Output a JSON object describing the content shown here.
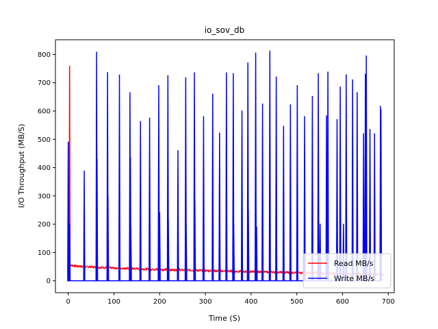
{
  "chart_data": {
    "type": "line",
    "title": "io_sov_db",
    "xlabel": "Time (S)",
    "ylabel": "I/O Throughput (MB/S)",
    "xlim": [
      -28,
      713
    ],
    "ylim": [
      -42,
      852
    ],
    "xticks": [
      0,
      100,
      200,
      300,
      400,
      500,
      600,
      700
    ],
    "yticks": [
      0,
      100,
      200,
      300,
      400,
      500,
      600,
      700,
      800
    ],
    "grid": false,
    "legend_position": "lower-right",
    "read_baseline": {
      "points": [
        [
          3,
          55
        ],
        [
          20,
          52
        ],
        [
          60,
          48
        ],
        [
          100,
          45
        ],
        [
          200,
          40
        ],
        [
          300,
          36
        ],
        [
          400,
          32
        ],
        [
          500,
          29
        ],
        [
          600,
          25
        ],
        [
          700,
          22
        ]
      ]
    },
    "read_spikes": [
      [
        3,
        760
      ],
      [
        110,
        45
      ],
      [
        200,
        38
      ],
      [
        355,
        35
      ]
    ],
    "write_spikes": [
      [
        0,
        490
      ],
      [
        3,
        200
      ],
      [
        35,
        388
      ],
      [
        62,
        808
      ],
      [
        63,
        430
      ],
      [
        86,
        736
      ],
      [
        87,
        295
      ],
      [
        112,
        727
      ],
      [
        135,
        665
      ],
      [
        136,
        435
      ],
      [
        137,
        190
      ],
      [
        158,
        563
      ],
      [
        178,
        575
      ],
      [
        198,
        690
      ],
      [
        200,
        240
      ],
      [
        218,
        725
      ],
      [
        219,
        215
      ],
      [
        240,
        460
      ],
      [
        257,
        718
      ],
      [
        258,
        200
      ],
      [
        276,
        735
      ],
      [
        277,
        280
      ],
      [
        296,
        580
      ],
      [
        316,
        660
      ],
      [
        331,
        522
      ],
      [
        346,
        735
      ],
      [
        361,
        732
      ],
      [
        362,
        200
      ],
      [
        380,
        600
      ],
      [
        393,
        770
      ],
      [
        394,
        250
      ],
      [
        410,
        805
      ],
      [
        412,
        190
      ],
      [
        425,
        625
      ],
      [
        441,
        812
      ],
      [
        455,
        720
      ],
      [
        471,
        546
      ],
      [
        486,
        622
      ],
      [
        501,
        690
      ],
      [
        517,
        580
      ],
      [
        534,
        652
      ],
      [
        547,
        732
      ],
      [
        551,
        200
      ],
      [
        565,
        583
      ],
      [
        568,
        738
      ],
      [
        588,
        570
      ],
      [
        595,
        685
      ],
      [
        602,
        200
      ],
      [
        608,
        728
      ],
      [
        622,
        710
      ],
      [
        632,
        665
      ],
      [
        646,
        520
      ],
      [
        650,
        730
      ],
      [
        652,
        795
      ],
      [
        660,
        535
      ],
      [
        670,
        520
      ],
      [
        683,
        617
      ],
      [
        684,
        605
      ]
    ],
    "series": [
      {
        "name": "Read MB/s",
        "color": "#ff0000"
      },
      {
        "name": "Write MB/s",
        "color": "#0000ff"
      }
    ]
  }
}
